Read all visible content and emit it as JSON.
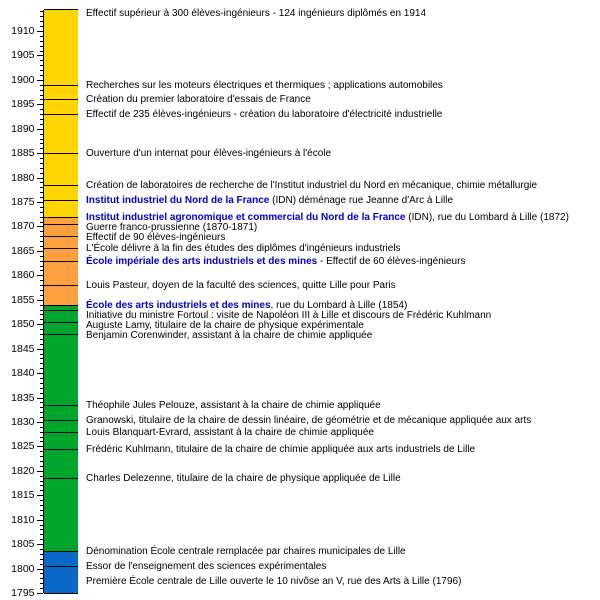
{
  "colors": {
    "segment_idn_yellow": "#FFD500",
    "segment_arts_et_mines_orange": "#FFA040",
    "segment_chaires_municipales_green": "#00A62C",
    "segment_ecole_centrale_blue": "#0A69C8",
    "link_blue": "#0000CC",
    "axis_black": "#000000",
    "background": "#FFFFFF"
  },
  "chart_data": {
    "type": "timeline",
    "orientation": "vertical",
    "axis": {
      "unit": "year",
      "year_min": 1795,
      "year_max": 1914.4,
      "major_tick_step": 5,
      "minor_tick_step": 1,
      "tick_labels": [
        "1910",
        "1905",
        "1900",
        "1895",
        "1890",
        "1885",
        "1880",
        "1875",
        "1870",
        "1865",
        "1860",
        "1855",
        "1850",
        "1845",
        "1840",
        "1835",
        "1830",
        "1825",
        "1820",
        "1815",
        "1810",
        "1805",
        "1800",
        "1795"
      ]
    },
    "segments": [
      {
        "from": 1872,
        "to": 1914.4,
        "color": "#FFD500"
      },
      {
        "from": 1854,
        "to": 1872,
        "color": "#FFA040"
      },
      {
        "from": 1803.5,
        "to": 1854,
        "color": "#00A62C"
      },
      {
        "from": 1795,
        "to": 1803.5,
        "color": "#0A69C8"
      }
    ],
    "events": [
      {
        "year": 1913.6,
        "line": false,
        "text": "Effectif supérieur à 300 élèves-ingénieurs - 124 ingénieurs diplômés en 1914"
      },
      {
        "year": 1899,
        "text": "Recherches sur les moteurs électriques et thermiques ; applications automobiles"
      },
      {
        "year": 1896,
        "text": "Création du premier laboratoire d'essais de France"
      },
      {
        "year": 1893,
        "text": "Effectif de 235 élèves-ingénieurs - création du laboratoire d'électricité industrielle"
      },
      {
        "year": 1885,
        "text": "Ouverture d'un internat pour élèves-ingénieurs à l'école"
      },
      {
        "year": 1878.5,
        "text": "Création de laboratoires de recherche de l'Institut industriel du Nord en mécanique, chimie métallurgie"
      },
      {
        "year": 1875.5,
        "link": "Institut industriel du Nord de la France",
        "text": " (IDN) déménage rue Jeanne d'Arc à Lille"
      },
      {
        "year": 1872,
        "link": "Institut industriel agronomique et commercial du Nord de la France",
        "text": " (IDN), rue du Lombard à Lille (1872)"
      },
      {
        "year": 1870.5,
        "text": "Guerre franco-prussienne (1870-1871)"
      },
      {
        "year": 1868,
        "text": "Effectif de 90 élèves-ingénieurs"
      },
      {
        "year": 1865.5,
        "text": "L'École délivre à la fin des études des diplômes d'ingénieurs industriels"
      },
      {
        "year": 1863,
        "link": "École impériale des arts industriels et des mines",
        "text": " - Effectif de 60 élèves-ingénieurs"
      },
      {
        "year": 1858,
        "text": "Louis Pasteur, doyen de la faculté des sciences, quitte Lille pour Paris"
      },
      {
        "year": 1854,
        "link": "École des arts industriels et des mines",
        "text": ", rue du Lombard à Lille (1854)"
      },
      {
        "year": 1853,
        "text": "Initiative du ministre Fortoul : visite de Napoléon III à Lille et discours de Frédéric Kuhlmann"
      },
      {
        "year": 1850.5,
        "text": "Auguste Lamy, titulaire de la chaire de physique expérimentale"
      },
      {
        "year": 1848,
        "text": "Benjamin Corenwinder, assistant à la chaire de chimie appliquée"
      },
      {
        "year": 1833.5,
        "text": "Théophile Jules Pelouze, assistant à la chaire de chimie appliquée"
      },
      {
        "year": 1830.5,
        "text": "Granowski, titulaire de la chaire de dessin linéaire, de géométrie et de mécanique appliquée aux arts"
      },
      {
        "year": 1828,
        "text": "Louis Blanquart-Evrard, assistant à la chaire de chimie appliquée"
      },
      {
        "year": 1824.5,
        "text": "Frédéric Kuhlmann, titulaire de la chaire de chimie appliquée aux arts industriels de Lille"
      },
      {
        "year": 1818.5,
        "text": "Charles Delezenne, titulaire de la chaire de physique appliquée de Lille"
      },
      {
        "year": 1803.5,
        "text": "Dénomination École centrale remplacée par chaires municipales de Lille"
      },
      {
        "year": 1800.5,
        "text": "Essor de l'enseignement des sciences expérimentales"
      },
      {
        "year": 1797.5,
        "line": false,
        "text": "Première École centrale de Lille ouverte le 10 nivôse an V, rue des Arts à Lille (1796)"
      }
    ]
  }
}
